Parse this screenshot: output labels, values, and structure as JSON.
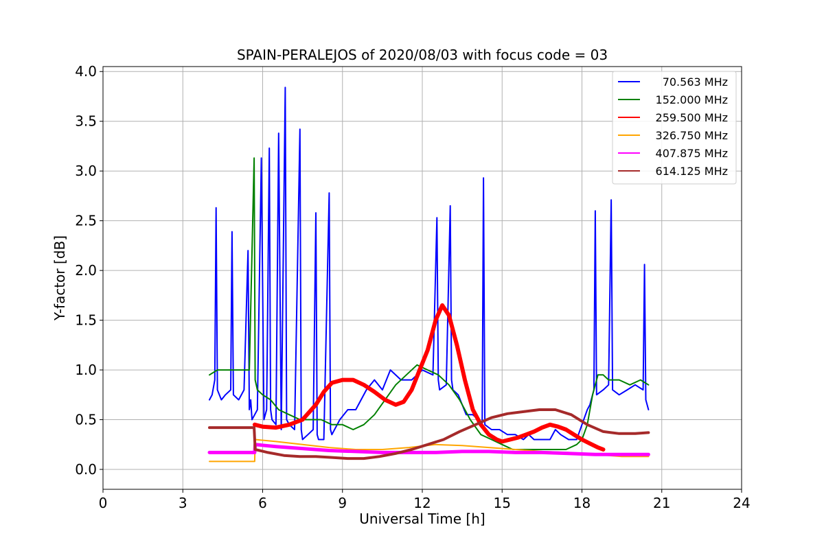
{
  "chart_data": {
    "type": "line",
    "title": "SPAIN-PERALEJOS of 2020/08/03 with focus code = 03",
    "xlabel": "Universal Time [h]",
    "ylabel": "Y-factor [dB]",
    "xlim": [
      0,
      24
    ],
    "ylim": [
      -0.2,
      4.05
    ],
    "xticks": [
      0,
      3,
      6,
      9,
      12,
      15,
      18,
      21,
      24
    ],
    "xtick_labels": [
      "0",
      "3",
      "6",
      "9",
      "12",
      "15",
      "18",
      "21",
      "24"
    ],
    "yticks": [
      0.0,
      0.5,
      1.0,
      1.5,
      2.0,
      2.5,
      3.0,
      3.5,
      4.0
    ],
    "ytick_labels": [
      "0.0",
      "0.5",
      "1.0",
      "1.5",
      "2.0",
      "2.5",
      "3.0",
      "3.5",
      "4.0"
    ],
    "grid": true,
    "legend_position": "top-right",
    "series": [
      {
        "name": "70.563 MHz",
        "color": "#0000ff",
        "x": [
          4.0,
          4.1,
          4.2,
          4.25,
          4.3,
          4.45,
          4.6,
          4.8,
          4.85,
          4.9,
          5.1,
          5.3,
          5.45,
          5.5,
          5.55,
          5.6,
          5.7,
          5.8,
          5.95,
          6.05,
          6.15,
          6.25,
          6.3,
          6.35,
          6.5,
          6.6,
          6.7,
          6.85,
          6.9,
          7.0,
          7.2,
          7.4,
          7.45,
          7.5,
          7.7,
          7.9,
          8.0,
          8.05,
          8.1,
          8.3,
          8.5,
          8.55,
          8.6,
          8.9,
          9.2,
          9.5,
          9.9,
          10.2,
          10.5,
          10.8,
          11.2,
          11.6,
          12.0,
          12.4,
          12.55,
          12.6,
          12.65,
          12.9,
          13.05,
          13.1,
          13.15,
          13.35,
          13.65,
          13.9,
          14.1,
          14.25,
          14.3,
          14.35,
          14.6,
          14.9,
          15.2,
          15.5,
          15.8,
          16.0,
          16.2,
          16.5,
          16.8,
          17.0,
          17.2,
          17.5,
          17.8,
          18.0,
          18.2,
          18.3,
          18.45,
          18.5,
          18.55,
          18.8,
          19.0,
          19.1,
          19.15,
          19.4,
          19.7,
          20.0,
          20.3,
          20.35,
          20.4,
          20.5
        ],
        "y": [
          0.7,
          0.75,
          0.9,
          2.63,
          0.8,
          0.7,
          0.75,
          0.8,
          2.39,
          0.75,
          0.7,
          0.8,
          2.2,
          0.6,
          0.7,
          0.5,
          0.55,
          0.6,
          3.13,
          0.5,
          0.6,
          3.23,
          0.6,
          0.5,
          0.45,
          3.38,
          0.4,
          3.84,
          0.5,
          0.45,
          0.4,
          3.42,
          0.4,
          0.3,
          0.35,
          0.4,
          2.58,
          0.35,
          0.3,
          0.3,
          2.78,
          0.4,
          0.35,
          0.5,
          0.6,
          0.6,
          0.8,
          0.9,
          0.8,
          1.0,
          0.9,
          0.9,
          1.0,
          0.95,
          2.53,
          0.9,
          0.8,
          0.85,
          2.65,
          0.9,
          0.8,
          0.75,
          0.55,
          0.55,
          0.5,
          0.45,
          2.93,
          0.45,
          0.4,
          0.4,
          0.35,
          0.35,
          0.3,
          0.35,
          0.3,
          0.3,
          0.3,
          0.4,
          0.35,
          0.3,
          0.3,
          0.45,
          0.6,
          0.65,
          0.8,
          2.6,
          0.75,
          0.8,
          0.85,
          2.71,
          0.8,
          0.75,
          0.8,
          0.85,
          0.8,
          2.06,
          0.7,
          0.6
        ]
      },
      {
        "name": "152.000 MHz",
        "color": "#008000",
        "x": [
          4.0,
          4.3,
          4.6,
          4.9,
          5.2,
          5.5,
          5.68,
          5.72,
          5.8,
          6.0,
          6.3,
          6.6,
          7.0,
          7.4,
          7.8,
          8.2,
          8.6,
          9.0,
          9.4,
          9.8,
          10.2,
          10.6,
          11.0,
          11.4,
          11.8,
          12.2,
          12.6,
          13.0,
          13.4,
          13.8,
          14.2,
          14.6,
          15.0,
          15.4,
          15.8,
          16.2,
          16.6,
          17.0,
          17.4,
          17.8,
          18.0,
          18.2,
          18.4,
          18.6,
          18.8,
          19.0,
          19.4,
          19.8,
          20.2,
          20.5
        ],
        "y": [
          0.95,
          1.0,
          1.0,
          1.0,
          1.0,
          1.0,
          3.13,
          0.9,
          0.8,
          0.75,
          0.7,
          0.6,
          0.55,
          0.5,
          0.5,
          0.5,
          0.45,
          0.45,
          0.4,
          0.45,
          0.55,
          0.7,
          0.85,
          0.95,
          1.05,
          1.0,
          0.95,
          0.85,
          0.7,
          0.5,
          0.35,
          0.3,
          0.25,
          0.2,
          0.2,
          0.2,
          0.2,
          0.2,
          0.2,
          0.25,
          0.3,
          0.45,
          0.75,
          0.95,
          0.95,
          0.9,
          0.9,
          0.85,
          0.9,
          0.85
        ]
      },
      {
        "name": "259.500 MHz",
        "color": "#ff0000",
        "x": [
          5.7,
          6.0,
          6.5,
          7.0,
          7.5,
          8.0,
          8.3,
          8.6,
          9.0,
          9.4,
          9.8,
          10.2,
          10.6,
          11.0,
          11.3,
          11.6,
          11.9,
          12.2,
          12.5,
          12.75,
          13.0,
          13.3,
          13.6,
          13.9,
          14.2,
          14.5,
          14.8,
          15.0,
          15.3,
          15.6,
          15.9,
          16.2,
          16.5,
          16.8,
          17.1,
          17.4,
          17.7,
          18.0,
          18.3,
          18.6,
          18.8
        ],
        "y": [
          0.45,
          0.43,
          0.42,
          0.45,
          0.5,
          0.65,
          0.78,
          0.87,
          0.9,
          0.9,
          0.85,
          0.78,
          0.7,
          0.65,
          0.68,
          0.8,
          1.0,
          1.2,
          1.5,
          1.65,
          1.55,
          1.25,
          0.9,
          0.6,
          0.45,
          0.35,
          0.3,
          0.28,
          0.3,
          0.32,
          0.35,
          0.38,
          0.42,
          0.45,
          0.43,
          0.4,
          0.35,
          0.3,
          0.26,
          0.22,
          0.2
        ]
      },
      {
        "name": "326.750 MHz",
        "color": "#ffa500",
        "x": [
          4.0,
          5.0,
          5.7,
          5.72,
          6.5,
          7.5,
          8.5,
          9.5,
          10.5,
          11.5,
          12.5,
          13.5,
          14.5,
          15.5,
          16.5,
          17.5,
          18.5,
          19.5,
          20.5
        ],
        "y": [
          0.08,
          0.08,
          0.08,
          0.3,
          0.28,
          0.25,
          0.22,
          0.2,
          0.2,
          0.22,
          0.25,
          0.24,
          0.22,
          0.2,
          0.18,
          0.17,
          0.15,
          0.13,
          0.13
        ]
      },
      {
        "name": "407.875 MHz",
        "color": "#ff00ff",
        "x": [
          4.0,
          5.0,
          5.7,
          5.72,
          6.5,
          7.5,
          8.5,
          9.5,
          10.5,
          11.5,
          12.5,
          13.5,
          14.5,
          15.5,
          16.5,
          17.5,
          18.5,
          19.5,
          20.5
        ],
        "y": [
          0.17,
          0.17,
          0.17,
          0.25,
          0.23,
          0.21,
          0.19,
          0.18,
          0.17,
          0.17,
          0.17,
          0.18,
          0.18,
          0.17,
          0.17,
          0.16,
          0.15,
          0.15,
          0.15
        ]
      },
      {
        "name": "614.125 MHz",
        "color": "#a52a2a",
        "x": [
          4.0,
          4.5,
          5.0,
          5.5,
          5.68,
          5.72,
          6.2,
          6.8,
          7.4,
          8.0,
          8.6,
          9.2,
          9.8,
          10.4,
          11.0,
          11.6,
          12.2,
          12.8,
          13.4,
          14.0,
          14.6,
          15.2,
          15.8,
          16.4,
          17.0,
          17.6,
          18.2,
          18.8,
          19.4,
          20.0,
          20.5
        ],
        "y": [
          0.42,
          0.42,
          0.42,
          0.42,
          0.42,
          0.2,
          0.17,
          0.14,
          0.13,
          0.13,
          0.12,
          0.11,
          0.11,
          0.13,
          0.16,
          0.2,
          0.25,
          0.3,
          0.38,
          0.45,
          0.52,
          0.56,
          0.58,
          0.6,
          0.6,
          0.55,
          0.45,
          0.38,
          0.36,
          0.36,
          0.37
        ]
      }
    ]
  }
}
